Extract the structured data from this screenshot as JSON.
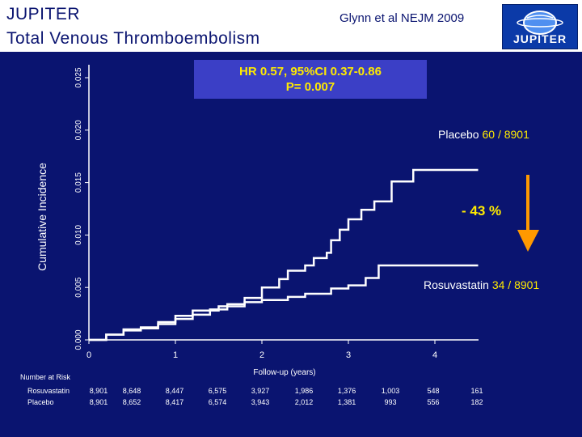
{
  "header": {
    "title_line1": "JUPITER",
    "title_line2": "Total Venous Thromboembolism",
    "citation": "Glynn et al NEJM 2009",
    "logo_text": "JUPITER"
  },
  "stats": {
    "line1": "HR 0.57, 95%CI 0.37-0.86",
    "line2": "P= 0.007"
  },
  "reduction": "- 43 %",
  "colors": {
    "background": "#0a1470",
    "highlight": "#ffea00",
    "arrow": "#ff9900",
    "stat_box": "#3b3fc6"
  },
  "chart_data": {
    "type": "line",
    "title": "Total Venous Thromboembolism",
    "xlabel": "Follow-up (years)",
    "ylabel": "Cumulative Incidence",
    "xlim": [
      0,
      4.6
    ],
    "ylim": [
      0,
      0.025
    ],
    "x_ticks": [
      "0",
      "1",
      "2",
      "3",
      "4"
    ],
    "y_ticks": [
      "0.000",
      "0.005",
      "0.010",
      "0.015",
      "0.020",
      "0.025"
    ],
    "series": [
      {
        "name": "Placebo",
        "events": "60 / 8901",
        "x": [
          0,
          0.2,
          0.4,
          0.6,
          0.8,
          1.0,
          1.2,
          1.4,
          1.6,
          1.8,
          2.0,
          2.2,
          2.3,
          2.5,
          2.6,
          2.75,
          2.8,
          2.9,
          3.0,
          3.15,
          3.3,
          3.5,
          3.75,
          4.0,
          4.5
        ],
        "values": [
          0,
          0.0005,
          0.0009,
          0.0011,
          0.0015,
          0.002,
          0.0024,
          0.0029,
          0.0034,
          0.004,
          0.005,
          0.0058,
          0.0066,
          0.0071,
          0.0078,
          0.0083,
          0.0095,
          0.0105,
          0.0115,
          0.0124,
          0.0132,
          0.0151,
          0.0162,
          0.0162,
          0.0162
        ]
      },
      {
        "name": "Rosuvastatin",
        "events": "34 / 8901",
        "x": [
          0,
          0.2,
          0.4,
          0.6,
          0.8,
          1.0,
          1.2,
          1.5,
          1.8,
          2.0,
          2.3,
          2.5,
          2.8,
          3.0,
          3.2,
          3.35,
          3.5,
          4.0,
          4.5
        ],
        "values": [
          0,
          0.0005,
          0.001,
          0.0012,
          0.0017,
          0.0023,
          0.0028,
          0.0032,
          0.0036,
          0.0038,
          0.0041,
          0.0044,
          0.0049,
          0.0052,
          0.0059,
          0.0071,
          0.0071,
          0.0071,
          0.0071
        ]
      }
    ]
  },
  "risk_table": {
    "title": "Number at Risk",
    "rows": [
      {
        "label": "Rosuvastatin",
        "values": [
          "8,901",
          "8,648",
          "8,447",
          "6,575",
          "3,927",
          "1,986",
          "1,376",
          "1,003",
          "548",
          "161"
        ]
      },
      {
        "label": "Placebo",
        "values": [
          "8,901",
          "8,652",
          "8,417",
          "6,574",
          "3,943",
          "2,012",
          "1,381",
          "993",
          "556",
          "182"
        ]
      }
    ]
  }
}
